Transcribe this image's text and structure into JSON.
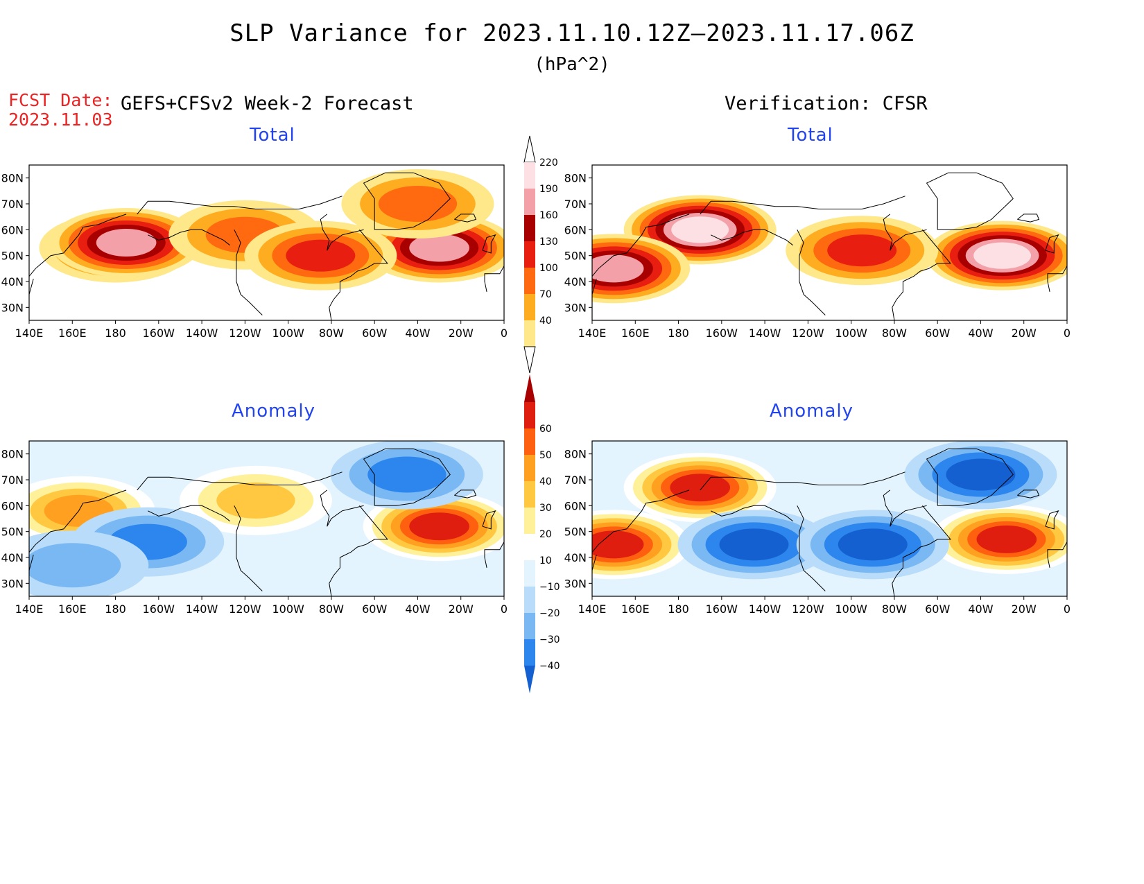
{
  "header": {
    "title": "SLP Variance for 2023.11.10.12Z–2023.11.17.06Z",
    "units": "(hPa^2)",
    "fcst_label": "FCST Date:",
    "fcst_date": "2023.11.03",
    "left_heading": "GEFS+CFSv2 Week-2 Forecast",
    "right_heading": "Verification: CFSR"
  },
  "panels": [
    {
      "id": "fcst-total",
      "title": "Total",
      "kind": "total"
    },
    {
      "id": "verif-total",
      "title": "Total",
      "kind": "total"
    },
    {
      "id": "fcst-anom",
      "title": "Anomaly",
      "kind": "anom"
    },
    {
      "id": "verif-anom",
      "title": "Anomaly",
      "kind": "anom"
    }
  ],
  "axes": {
    "x_ticks": [
      "140E",
      "160E",
      "180",
      "160W",
      "140W",
      "120W",
      "100W",
      "80W",
      "60W",
      "40W",
      "20W",
      "0"
    ],
    "y_ticks": [
      "30N",
      "40N",
      "50N",
      "60N",
      "70N",
      "80N"
    ],
    "lon_range": [
      140,
      360
    ],
    "lat_range": [
      25,
      85
    ]
  },
  "colorbars": {
    "total": {
      "levels": [
        40,
        70,
        100,
        130,
        160,
        190,
        220
      ],
      "colors": [
        "#ffe88a",
        "#ffad20",
        "#ff6a10",
        "#e81e10",
        "#a80000",
        "#f4a0a8",
        "#fce0e4"
      ]
    },
    "anom": {
      "levels": [
        -40,
        -30,
        -20,
        -10,
        10,
        20,
        30,
        40,
        50,
        60
      ],
      "colors": [
        "#1560d0",
        "#2c86ee",
        "#7ab8f4",
        "#b8dcfa",
        "#e4f4fe",
        "#ffffff",
        "#fff09a",
        "#ffc840",
        "#ffa020",
        "#ff6010",
        "#e01e10",
        "#a80000"
      ]
    }
  },
  "chart_data": [
    {
      "type": "heatmap",
      "title": "Total",
      "panel": "GEFS+CFSv2 Week-2 Forecast",
      "units": "hPa^2",
      "blobs": [
        {
          "lon": 180,
          "lat": 53,
          "value": 150
        },
        {
          "lon": 185,
          "lat": 55,
          "value": 190
        },
        {
          "lon": 330,
          "lat": 53,
          "value": 190
        },
        {
          "lon": 320,
          "lat": 70,
          "value": 100
        },
        {
          "lon": 240,
          "lat": 58,
          "value": 110
        },
        {
          "lon": 275,
          "lat": 50,
          "value": 130
        }
      ]
    },
    {
      "type": "heatmap",
      "title": "Total",
      "panel": "Verification: CFSR",
      "units": "hPa^2",
      "blobs": [
        {
          "lon": 190,
          "lat": 60,
          "value": 220
        },
        {
          "lon": 150,
          "lat": 45,
          "value": 200
        },
        {
          "lon": 330,
          "lat": 50,
          "value": 220
        },
        {
          "lon": 265,
          "lat": 52,
          "value": 150
        }
      ]
    },
    {
      "type": "heatmap",
      "title": "Anomaly",
      "panel": "GEFS+CFSv2 Week-2 Forecast",
      "units": "hPa^2",
      "blobs": [
        {
          "lon": 163,
          "lat": 58,
          "value": 40
        },
        {
          "lon": 330,
          "lat": 52,
          "value": 60
        },
        {
          "lon": 245,
          "lat": 62,
          "value": 30
        },
        {
          "lon": 195,
          "lat": 46,
          "value": -30
        },
        {
          "lon": 315,
          "lat": 72,
          "value": -30
        },
        {
          "lon": 160,
          "lat": 37,
          "value": -20
        }
      ]
    },
    {
      "type": "heatmap",
      "title": "Anomaly",
      "panel": "Verification: CFSR",
      "units": "hPa^2",
      "blobs": [
        {
          "lon": 190,
          "lat": 67,
          "value": 60
        },
        {
          "lon": 150,
          "lat": 45,
          "value": 60
        },
        {
          "lon": 332,
          "lat": 47,
          "value": 60
        },
        {
          "lon": 215,
          "lat": 45,
          "value": -40
        },
        {
          "lon": 270,
          "lat": 45,
          "value": -40
        },
        {
          "lon": 320,
          "lat": 72,
          "value": -40
        }
      ]
    }
  ]
}
